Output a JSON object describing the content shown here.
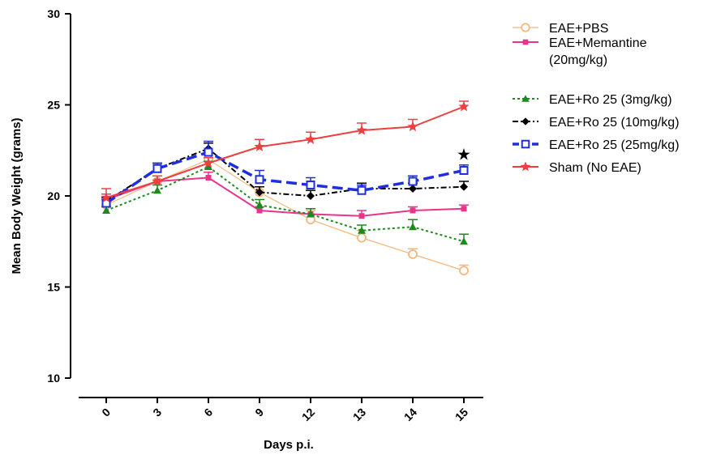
{
  "chart_data": {
    "type": "line",
    "xlabel": "Days p.i.",
    "ylabel": "Mean Body Weight (grams)",
    "categories": [
      "0",
      "3",
      "6",
      "9",
      "12",
      "13",
      "14",
      "15"
    ],
    "y_ticks": [
      "10",
      "15",
      "20",
      "25",
      "30"
    ],
    "ylim": [
      10,
      30
    ],
    "grid": false,
    "legend_position": "right",
    "significance_marker": {
      "symbol": "★",
      "category": "15",
      "value": 22.3,
      "series": "EAE+Ro 25 (10mg/kg)"
    },
    "series": [
      {
        "name": "EAE+PBS",
        "color": "#f5b77a",
        "marker": "circle-open",
        "line": "solid-thin",
        "values": [
          19.5,
          20.8,
          22.0,
          20.2,
          18.7,
          17.7,
          16.8,
          15.9
        ],
        "errors": [
          0.3,
          0.3,
          0.4,
          0.3,
          0.5,
          0.4,
          0.3,
          0.3
        ]
      },
      {
        "name": "EAE+Memantine (20mg/kg)",
        "name_lines": [
          "EAE+Memantine",
          "(20mg/kg)"
        ],
        "color": "#e8358a",
        "marker": "square",
        "line": "solid",
        "values": [
          19.8,
          20.8,
          21.0,
          19.2,
          19.0,
          18.9,
          19.2,
          19.3
        ],
        "errors": [
          0.3,
          0.3,
          0.3,
          0.2,
          0.3,
          0.3,
          0.2,
          0.2
        ]
      },
      {
        "name": "EAE+Ro 25 (3mg/kg)",
        "color": "#1e8a1e",
        "marker": "triangle",
        "line": "dotted",
        "values": [
          19.2,
          20.3,
          21.6,
          19.5,
          19.0,
          18.1,
          18.3,
          17.5
        ],
        "errors": [
          0.2,
          0.3,
          0.3,
          0.3,
          0.3,
          0.3,
          0.4,
          0.4
        ]
      },
      {
        "name": "EAE+Ro 25 (10mg/kg)",
        "color": "#000000",
        "marker": "diamond",
        "line": "dashdot",
        "values": [
          19.7,
          21.5,
          22.6,
          20.2,
          20.0,
          20.4,
          20.4,
          20.5
        ],
        "errors": [
          0.2,
          0.3,
          0.3,
          0.3,
          0.3,
          0.3,
          0.3,
          0.3
        ]
      },
      {
        "name": "EAE+Ro 25 (25mg/kg)",
        "color": "#1f2fe0",
        "marker": "square-open",
        "line": "dashed-thick",
        "values": [
          19.6,
          21.5,
          22.4,
          20.9,
          20.6,
          20.3,
          20.8,
          21.4
        ],
        "errors": [
          0.2,
          0.3,
          0.6,
          0.5,
          0.4,
          0.3,
          0.3,
          0.3
        ]
      },
      {
        "name": "Sham (No EAE)",
        "color": "#ec4040",
        "marker": "star",
        "line": "solid",
        "values": [
          19.9,
          20.8,
          21.8,
          22.7,
          23.1,
          23.6,
          23.8,
          24.9
        ],
        "errors": [
          0.5,
          0.3,
          0.3,
          0.4,
          0.4,
          0.4,
          0.4,
          0.3
        ]
      }
    ]
  }
}
